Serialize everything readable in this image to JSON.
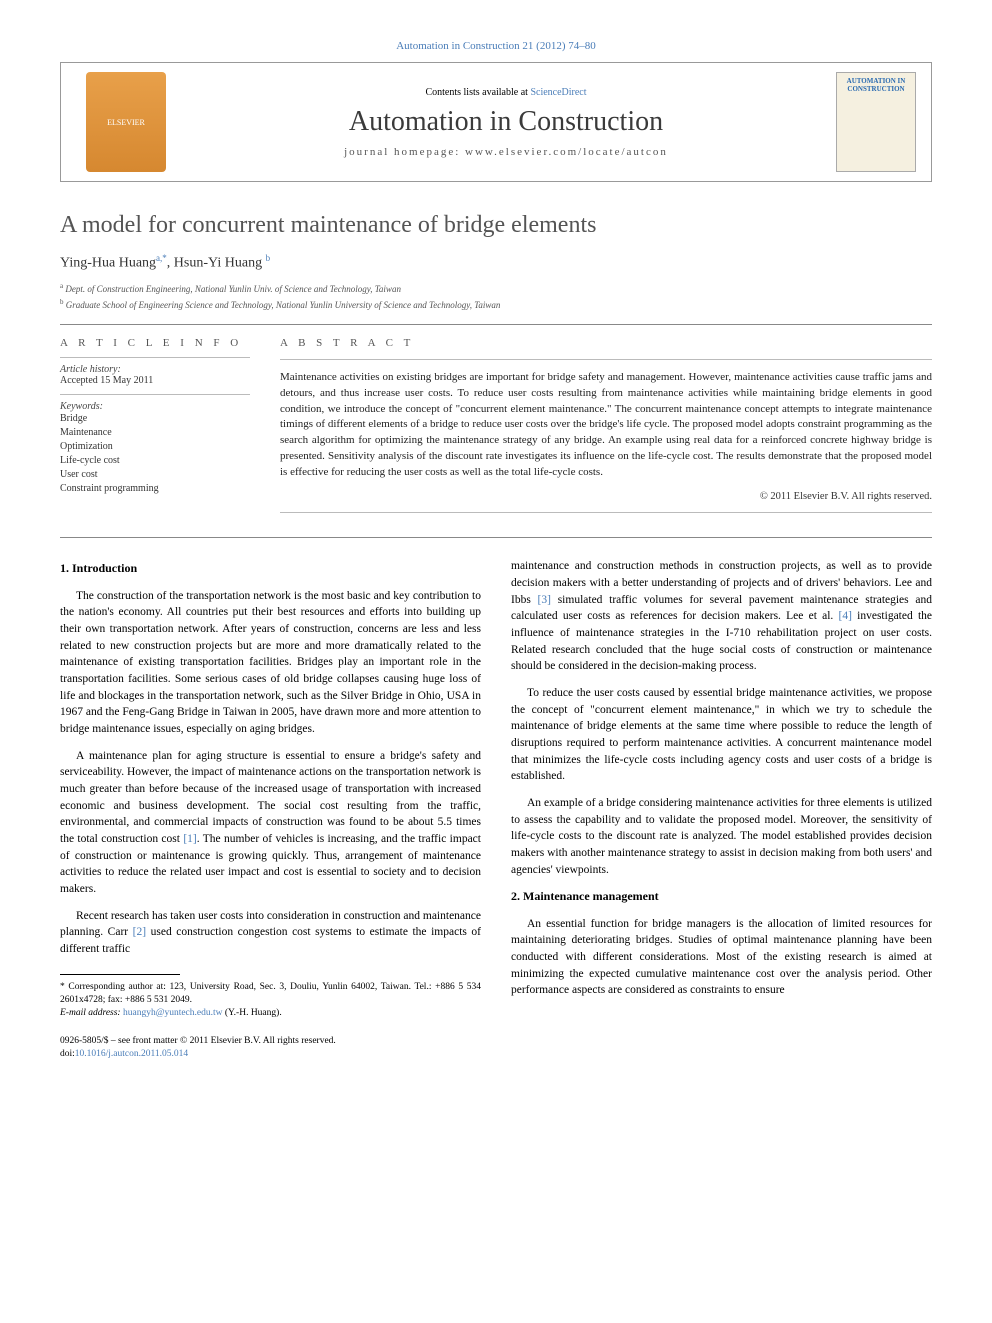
{
  "top_link": "Automation in Construction 21 (2012) 74–80",
  "header": {
    "contents_prefix": "Contents lists available at ",
    "contents_link": "ScienceDirect",
    "journal_name": "Automation in Construction",
    "homepage_prefix": "journal homepage: ",
    "homepage_url": "www.elsevier.com/locate/autcon",
    "publisher_logo_alt": "ELSEVIER",
    "cover_text": "AUTOMATION IN CONSTRUCTION"
  },
  "article": {
    "title": "A model for concurrent maintenance of bridge elements",
    "authors_html": "Ying-Hua Huang",
    "author1_sup": "a,",
    "author1_ast": "*",
    "authors_sep": ", ",
    "author2": "Hsun-Yi Huang",
    "author2_sup": "b",
    "affiliations": [
      {
        "sup": "a",
        "text": "Dept. of Construction Engineering, National Yunlin Univ. of Science and Technology, Taiwan"
      },
      {
        "sup": "b",
        "text": "Graduate School of Engineering Science and Technology, National Yunlin University of Science and Technology, Taiwan"
      }
    ]
  },
  "info": {
    "heading": "A R T I C L E   I N F O",
    "history_label": "Article history:",
    "history_value": "Accepted 15 May 2011",
    "keywords_label": "Keywords:",
    "keywords": [
      "Bridge",
      "Maintenance",
      "Optimization",
      "Life-cycle cost",
      "User cost",
      "Constraint programming"
    ]
  },
  "abstract": {
    "heading": "A B S T R A C T",
    "text": "Maintenance activities on existing bridges are important for bridge safety and management. However, maintenance activities cause traffic jams and detours, and thus increase user costs. To reduce user costs resulting from maintenance activities while maintaining bridge elements in good condition, we introduce the concept of \"concurrent element maintenance.\" The concurrent maintenance concept attempts to integrate maintenance timings of different elements of a bridge to reduce user costs over the bridge's life cycle. The proposed model adopts constraint programming as the search algorithm for optimizing the maintenance strategy of any bridge. An example using real data for a reinforced concrete highway bridge is presented. Sensitivity analysis of the discount rate investigates its influence on the life-cycle cost. The results demonstrate that the proposed model is effective for reducing the user costs as well as the total life-cycle costs.",
    "copyright": "© 2011 Elsevier B.V. All rights reserved."
  },
  "body": {
    "left": {
      "sec1_heading": "1. Introduction",
      "p1": "The construction of the transportation network is the most basic and key contribution to the nation's economy. All countries put their best resources and efforts into building up their own transportation network. After years of construction, concerns are less and less related to new construction projects but are more and more dramatically related to the maintenance of existing transportation facilities. Bridges play an important role in the transportation facilities. Some serious cases of old bridge collapses causing huge loss of life and blockages in the transportation network, such as the Silver Bridge in Ohio, USA in 1967 and the Feng-Gang Bridge in Taiwan in 2005, have drawn more and more attention to bridge maintenance issues, especially on aging bridges.",
      "p2_a": "A maintenance plan for aging structure is essential to ensure a bridge's safety and serviceability. However, the impact of maintenance actions on the transportation network is much greater than before because of the increased usage of transportation with increased economic and business development. The social cost resulting from the traffic, environmental, and commercial impacts of construction was found to be about 5.5 times the total construction cost ",
      "p2_ref1": "[1]",
      "p2_b": ". The number of vehicles is increasing, and the traffic impact of construction or maintenance is growing quickly. Thus, arrangement of maintenance activities to reduce the related user impact and cost is essential to society and to decision makers.",
      "p3_a": "Recent research has taken user costs into consideration in construction and maintenance planning. Carr ",
      "p3_ref2": "[2]",
      "p3_b": " used construction congestion cost systems to estimate the impacts of different traffic"
    },
    "right": {
      "p1_a": "maintenance and construction methods in construction projects, as well as to provide decision makers with a better understanding of projects and of drivers' behaviors. Lee and Ibbs ",
      "p1_ref3": "[3]",
      "p1_b": " simulated traffic volumes for several pavement maintenance strategies and calculated user costs as references for decision makers. Lee et al. ",
      "p1_ref4": "[4]",
      "p1_c": " investigated the influence of maintenance strategies in the I-710 rehabilitation project on user costs. Related research concluded that the huge social costs of construction or maintenance should be considered in the decision-making process.",
      "p2": "To reduce the user costs caused by essential bridge maintenance activities, we propose the concept of \"concurrent element maintenance,\" in which we try to schedule the maintenance of bridge elements at the same time where possible to reduce the length of disruptions required to perform maintenance activities. A concurrent maintenance model that minimizes the life-cycle costs including agency costs and user costs of a bridge is established.",
      "p3": "An example of a bridge considering maintenance activities for three elements is utilized to assess the capability and to validate the proposed model. Moreover, the sensitivity of life-cycle costs to the discount rate is analyzed. The model established provides decision makers with another maintenance strategy to assist in decision making from both users' and agencies' viewpoints.",
      "sec2_heading": "2. Maintenance management",
      "p4": "An essential function for bridge managers is the allocation of limited resources for maintaining deteriorating bridges. Studies of optimal maintenance planning have been conducted with different considerations. Most of the existing research is aimed at minimizing the expected cumulative maintenance cost over the analysis period. Other performance aspects are considered as constraints to ensure"
    }
  },
  "footnotes": {
    "corr_a": "* Corresponding author at: 123, University Road, Sec. 3, Douliu, Yunlin 64002, Taiwan. Tel.: +886 5 534 2601x4728; fax: +886 5 531 2049.",
    "email_label": "E-mail address: ",
    "email": "huangyh@yuntech.edu.tw",
    "email_suffix": " (Y.-H. Huang)."
  },
  "bottom": {
    "line1": "0926-5805/$ – see front matter © 2011 Elsevier B.V. All rights reserved.",
    "doi_prefix": "doi:",
    "doi": "10.1016/j.autcon.2011.05.014"
  },
  "colors": {
    "link": "#4a7db8",
    "text": "#222222",
    "heading": "#545454",
    "rule": "#888888"
  }
}
